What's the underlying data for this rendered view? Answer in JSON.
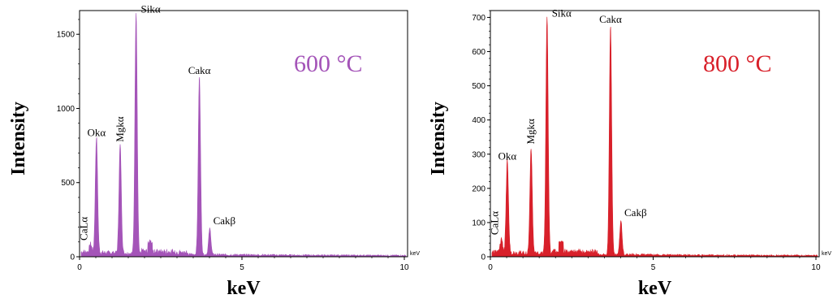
{
  "chart_data": [
    {
      "type": "line",
      "annotation": "600 °C",
      "color": "#a454b8",
      "xlabel": "keV",
      "ylabel": "Intensity",
      "axis_unit": "keV",
      "xlim": [
        0,
        10.1
      ],
      "ylim": [
        0,
        1660
      ],
      "xticks": [
        0,
        5,
        10
      ],
      "yticks": [
        0,
        500,
        1000,
        1500
      ],
      "peaks": [
        {
          "label": "CaLα",
          "x": 0.34,
          "y": 55,
          "label_rotated": true
        },
        {
          "label": "Okα",
          "x": 0.52,
          "y": 780
        },
        {
          "label": "Mgkα",
          "x": 1.25,
          "y": 730,
          "label_rotated": true
        },
        {
          "label": "Sikα",
          "x": 1.74,
          "y": 1630
        },
        {
          "label": "Cakα",
          "x": 3.69,
          "y": 1200
        },
        {
          "label": "Cakβ",
          "x": 4.01,
          "y": 175
        }
      ]
    },
    {
      "type": "line",
      "annotation": "800 °C",
      "color": "#d8202a",
      "xlabel": "keV",
      "ylabel": "Intensity",
      "axis_unit": "keV",
      "xlim": [
        0,
        10.1
      ],
      "ylim": [
        0,
        720
      ],
      "xticks": [
        0,
        5,
        10
      ],
      "yticks": [
        0,
        100,
        200,
        300,
        400,
        500,
        600,
        700
      ],
      "peaks": [
        {
          "label": "CaLα",
          "x": 0.34,
          "y": 40,
          "label_rotated": true
        },
        {
          "label": "Okα",
          "x": 0.52,
          "y": 270
        },
        {
          "label": "Mgkα",
          "x": 1.25,
          "y": 310,
          "label_rotated": true
        },
        {
          "label": "Sikα",
          "x": 1.74,
          "y": 695
        },
        {
          "label": "Cakα",
          "x": 3.69,
          "y": 670
        },
        {
          "label": "Cakβ",
          "x": 4.01,
          "y": 100
        }
      ]
    }
  ]
}
